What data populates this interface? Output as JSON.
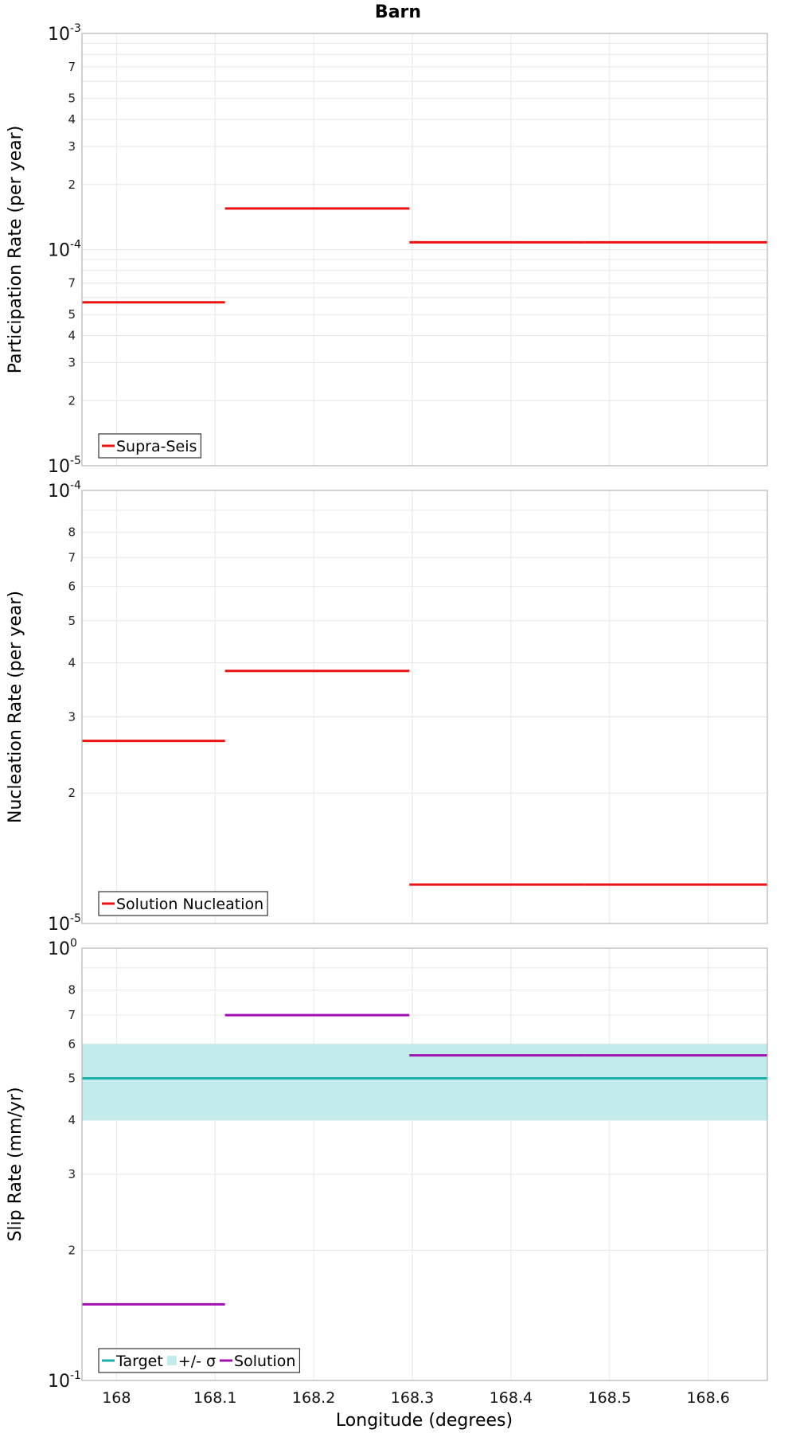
{
  "chart_data": {
    "type": "line",
    "title": "Barn",
    "xlabel": "Longitude (degrees)",
    "xlim": [
      167.965,
      168.66
    ],
    "x_ticks": [
      "168",
      "168.1",
      "168.2",
      "168.3",
      "168.4",
      "168.5",
      "168.6"
    ],
    "x_tick_values": [
      168.0,
      168.1,
      168.2,
      168.3,
      168.4,
      168.5,
      168.6
    ],
    "grid": true,
    "panels": [
      {
        "ylabel": "Participation Rate (per year)",
        "yscale": "log",
        "ylim": [
          1e-05,
          0.001
        ],
        "decade_labels": [
          {
            "value": 0.001,
            "base": "10",
            "exp": "-3"
          },
          {
            "value": 0.0001,
            "base": "10",
            "exp": "-4"
          },
          {
            "value": 1e-05,
            "base": "10",
            "exp": "-5"
          }
        ],
        "minor_labels": [
          {
            "value": 0.0007,
            "label": "7"
          },
          {
            "value": 0.0005,
            "label": "5"
          },
          {
            "value": 0.0004,
            "label": "4"
          },
          {
            "value": 0.0003,
            "label": "3"
          },
          {
            "value": 0.0002,
            "label": "2"
          },
          {
            "value": 7e-05,
            "label": "7"
          },
          {
            "value": 5e-05,
            "label": "5"
          },
          {
            "value": 4e-05,
            "label": "4"
          },
          {
            "value": 3e-05,
            "label": "3"
          },
          {
            "value": 2e-05,
            "label": "2"
          }
        ],
        "legend": "bottom-left",
        "series": [
          {
            "name": "Supra-Seis",
            "color": "#ee1111",
            "segments": [
              {
                "x": [
                  167.965,
                  168.11
                ],
                "y": 5.7e-05
              },
              {
                "x": [
                  168.11,
                  168.297
                ],
                "y": 0.000155
              },
              {
                "x": [
                  168.297,
                  168.475
                ],
                "y": 0.000108
              },
              {
                "x": [
                  168.475,
                  168.66
                ],
                "y": 0.000108
              }
            ]
          }
        ]
      },
      {
        "ylabel": "Nucleation Rate (per year)",
        "yscale": "log",
        "ylim": [
          1e-05,
          0.0001
        ],
        "decade_labels": [
          {
            "value": 0.0001,
            "base": "10",
            "exp": "-4"
          },
          {
            "value": 1e-05,
            "base": "10",
            "exp": "-5"
          }
        ],
        "minor_labels": [
          {
            "value": 8e-05,
            "label": "8"
          },
          {
            "value": 7e-05,
            "label": "7"
          },
          {
            "value": 6e-05,
            "label": "6"
          },
          {
            "value": 5e-05,
            "label": "5"
          },
          {
            "value": 4e-05,
            "label": "4"
          },
          {
            "value": 3e-05,
            "label": "3"
          },
          {
            "value": 2e-05,
            "label": "2"
          }
        ],
        "legend": "bottom-left",
        "series": [
          {
            "name": "Solution Nucleation",
            "color": "#ee1111",
            "segments": [
              {
                "x": [
                  167.965,
                  168.11
                ],
                "y": 2.64e-05
              },
              {
                "x": [
                  168.11,
                  168.297
                ],
                "y": 3.83e-05
              },
              {
                "x": [
                  168.297,
                  168.475
                ],
                "y": 1.23e-05
              },
              {
                "x": [
                  168.475,
                  168.66
                ],
                "y": 1.23e-05
              }
            ]
          }
        ]
      },
      {
        "ylabel": "Slip Rate (mm/yr)",
        "yscale": "log",
        "ylim": [
          0.1,
          1
        ],
        "decade_labels": [
          {
            "value": 1,
            "base": "10",
            "exp": "0"
          },
          {
            "value": 0.1,
            "base": "10",
            "exp": "-1"
          }
        ],
        "minor_labels": [
          {
            "value": 0.8,
            "label": "8"
          },
          {
            "value": 0.7,
            "label": "7"
          },
          {
            "value": 0.6,
            "label": "6"
          },
          {
            "value": 0.5,
            "label": "5"
          },
          {
            "value": 0.4,
            "label": "4"
          },
          {
            "value": 0.3,
            "label": "3"
          },
          {
            "value": 0.2,
            "label": "2"
          }
        ],
        "legend": "bottom-left",
        "band": {
          "name": "+/- σ",
          "color": "#c2ecec",
          "y": [
            0.4,
            0.6
          ],
          "x": [
            167.965,
            168.66
          ]
        },
        "series": [
          {
            "name": "Target",
            "color": "#1aafaa",
            "segments": [
              {
                "x": [
                  167.965,
                  168.66
                ],
                "y": 0.5
              }
            ]
          },
          {
            "name": "Solution",
            "color": "#a010b0",
            "segments": [
              {
                "x": [
                  167.965,
                  168.11
                ],
                "y": 0.15
              },
              {
                "x": [
                  168.11,
                  168.297
                ],
                "y": 0.7
              },
              {
                "x": [
                  168.297,
                  168.475
                ],
                "y": 0.565
              },
              {
                "x": [
                  168.475,
                  168.66
                ],
                "y": 0.565
              }
            ]
          }
        ]
      }
    ]
  }
}
